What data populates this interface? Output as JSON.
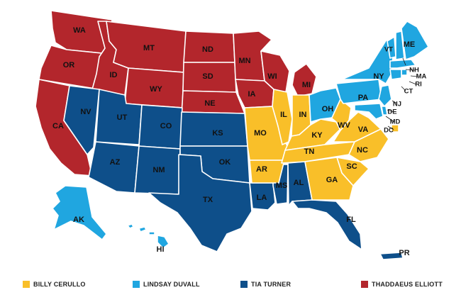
{
  "colors": {
    "yellow": "#f9bf29",
    "lightblue": "#20a6e0",
    "navy": "#0e4f8a",
    "red": "#b3262c"
  },
  "legend": [
    {
      "name": "BILLY CERULLO",
      "color": "#f9bf29"
    },
    {
      "name": "LINDSAY DUVALL",
      "color": "#20a6e0"
    },
    {
      "name": "TIA TURNER",
      "color": "#0e4f8a"
    },
    {
      "name": "THADDAEUS ELLIOTT",
      "color": "#b3262c"
    }
  ],
  "territories": [
    {
      "code": "WA",
      "owner": "THADDAEUS ELLIOTT"
    },
    {
      "code": "OR",
      "owner": "THADDAEUS ELLIOTT"
    },
    {
      "code": "CA",
      "owner": "THADDAEUS ELLIOTT"
    },
    {
      "code": "ID",
      "owner": "THADDAEUS ELLIOTT"
    },
    {
      "code": "MT",
      "owner": "THADDAEUS ELLIOTT"
    },
    {
      "code": "WY",
      "owner": "THADDAEUS ELLIOTT"
    },
    {
      "code": "ND",
      "owner": "THADDAEUS ELLIOTT"
    },
    {
      "code": "SD",
      "owner": "THADDAEUS ELLIOTT"
    },
    {
      "code": "NE",
      "owner": "THADDAEUS ELLIOTT"
    },
    {
      "code": "MN",
      "owner": "THADDAEUS ELLIOTT"
    },
    {
      "code": "IA",
      "owner": "THADDAEUS ELLIOTT"
    },
    {
      "code": "WI",
      "owner": "THADDAEUS ELLIOTT"
    },
    {
      "code": "MI",
      "owner": "THADDAEUS ELLIOTT"
    },
    {
      "code": "NV",
      "owner": "TIA TURNER"
    },
    {
      "code": "UT",
      "owner": "TIA TURNER"
    },
    {
      "code": "AZ",
      "owner": "TIA TURNER"
    },
    {
      "code": "CO",
      "owner": "TIA TURNER"
    },
    {
      "code": "NM",
      "owner": "TIA TURNER"
    },
    {
      "code": "KS",
      "owner": "TIA TURNER"
    },
    {
      "code": "OK",
      "owner": "TIA TURNER"
    },
    {
      "code": "TX",
      "owner": "TIA TURNER"
    },
    {
      "code": "LA",
      "owner": "TIA TURNER"
    },
    {
      "code": "MS",
      "owner": "TIA TURNER"
    },
    {
      "code": "AL",
      "owner": "TIA TURNER"
    },
    {
      "code": "FL",
      "owner": "TIA TURNER"
    },
    {
      "code": "PR",
      "owner": "TIA TURNER"
    },
    {
      "code": "MO",
      "owner": "BILLY CERULLO"
    },
    {
      "code": "AR",
      "owner": "BILLY CERULLO"
    },
    {
      "code": "IL",
      "owner": "BILLY CERULLO"
    },
    {
      "code": "IN",
      "owner": "BILLY CERULLO"
    },
    {
      "code": "KY",
      "owner": "BILLY CERULLO"
    },
    {
      "code": "TN",
      "owner": "BILLY CERULLO"
    },
    {
      "code": "WV",
      "owner": "BILLY CERULLO"
    },
    {
      "code": "VA",
      "owner": "BILLY CERULLO"
    },
    {
      "code": "NC",
      "owner": "BILLY CERULLO"
    },
    {
      "code": "SC",
      "owner": "BILLY CERULLO"
    },
    {
      "code": "GA",
      "owner": "BILLY CERULLO"
    },
    {
      "code": "DC",
      "owner": "BILLY CERULLO"
    },
    {
      "code": "OH",
      "owner": "LINDSAY DUVALL"
    },
    {
      "code": "PA",
      "owner": "LINDSAY DUVALL"
    },
    {
      "code": "NY",
      "owner": "LINDSAY DUVALL"
    },
    {
      "code": "VT",
      "owner": "LINDSAY DUVALL"
    },
    {
      "code": "NH",
      "owner": "LINDSAY DUVALL"
    },
    {
      "code": "ME",
      "owner": "LINDSAY DUVALL"
    },
    {
      "code": "MA",
      "owner": "LINDSAY DUVALL"
    },
    {
      "code": "RI",
      "owner": "LINDSAY DUVALL"
    },
    {
      "code": "CT",
      "owner": "LINDSAY DUVALL"
    },
    {
      "code": "NJ",
      "owner": "LINDSAY DUVALL"
    },
    {
      "code": "DE",
      "owner": "LINDSAY DUVALL"
    },
    {
      "code": "MD",
      "owner": "LINDSAY DUVALL"
    },
    {
      "code": "AK",
      "owner": "LINDSAY DUVALL"
    },
    {
      "code": "HI",
      "owner": "LINDSAY DUVALL"
    }
  ]
}
